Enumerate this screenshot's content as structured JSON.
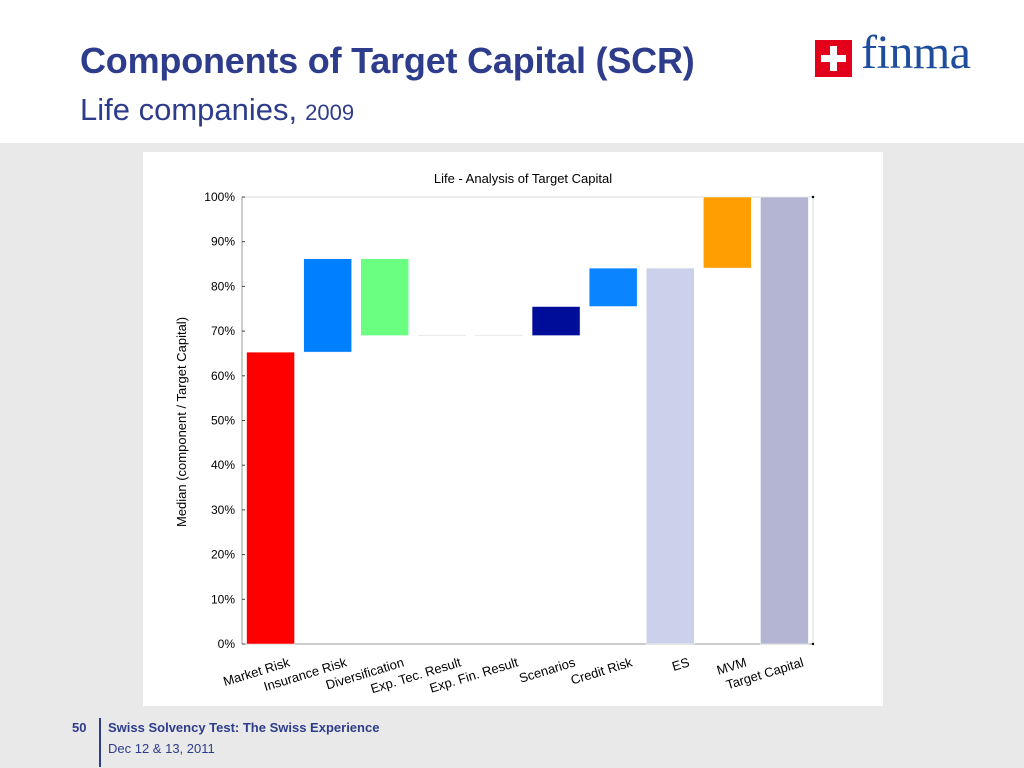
{
  "slide": {
    "title": "Components of Target Capital (SCR)",
    "subtitle": "Life companies,",
    "subtitle_year": "2009",
    "logo_text": "finma",
    "logo_icon": "swiss-cross-icon",
    "page_number": "50",
    "footer_title": "Swiss Solvency Test: The Swiss Experience",
    "footer_date": "Dec 12 & 13, 2011",
    "colors": {
      "title": "#2e3c8c",
      "logo_text": "#1e4d9c",
      "logo_red": "#e2001a",
      "background": "#e9e9e9"
    }
  },
  "chart_data": {
    "type": "bar",
    "title": "Life - Analysis of Target Capital",
    "xlabel": "",
    "ylabel": "Median (component / Target Capital)",
    "ylim": [
      0,
      100
    ],
    "y_ticks": [
      0,
      10,
      20,
      30,
      40,
      50,
      60,
      70,
      80,
      90,
      100
    ],
    "y_tick_labels": [
      "0%",
      "10%",
      "20%",
      "30%",
      "40%",
      "50%",
      "60%",
      "70%",
      "80%",
      "90%",
      "100%"
    ],
    "grid": false,
    "legend": "none",
    "categories": [
      "Market Risk",
      "Insurance Risk",
      "Diversification",
      "Exp. Tec. Result",
      "Exp. Fin. Result",
      "Scenarios",
      "Credit Risk",
      "ES",
      "MVM",
      "Target Capital"
    ],
    "category_labels": [
      [
        "Market Risk"
      ],
      [
        "Insurance Risk"
      ],
      [
        "Diversification"
      ],
      [
        "Exp. Tec. Result"
      ],
      [
        "Exp. Fin. Result"
      ],
      [
        "Scenarios"
      ],
      [
        "Credit Risk"
      ],
      [
        "ES"
      ],
      [
        "MVM"
      ],
      [
        "Target Capital"
      ]
    ],
    "bars": [
      {
        "category": "Market Risk",
        "bottom": 0,
        "top": 65.3,
        "color": "#ff0000"
      },
      {
        "category": "Insurance Risk",
        "bottom": 65.3,
        "top": 86.2,
        "color": "#0080ff"
      },
      {
        "category": "Diversification",
        "bottom": 69.0,
        "top": 86.2,
        "color": "#6bff82"
      },
      {
        "category": "Exp. Tec. Result",
        "bottom": 69.0,
        "top": 69.2,
        "color": "#d0d0d0"
      },
      {
        "category": "Exp. Fin. Result",
        "bottom": 69.0,
        "top": 69.2,
        "color": "#d0d0d0"
      },
      {
        "category": "Scenarios",
        "bottom": 69.0,
        "top": 75.5,
        "color": "#000d99"
      },
      {
        "category": "Credit Risk",
        "bottom": 75.5,
        "top": 84.1,
        "color": "#0a84ff"
      },
      {
        "category": "ES",
        "bottom": 0,
        "top": 84.1,
        "color": "#cdd0ea"
      },
      {
        "category": "MVM",
        "bottom": 84.1,
        "top": 100,
        "color": "#ff9e00"
      },
      {
        "category": "Target Capital",
        "bottom": 0,
        "top": 100,
        "color": "#b3b5d2"
      }
    ]
  }
}
